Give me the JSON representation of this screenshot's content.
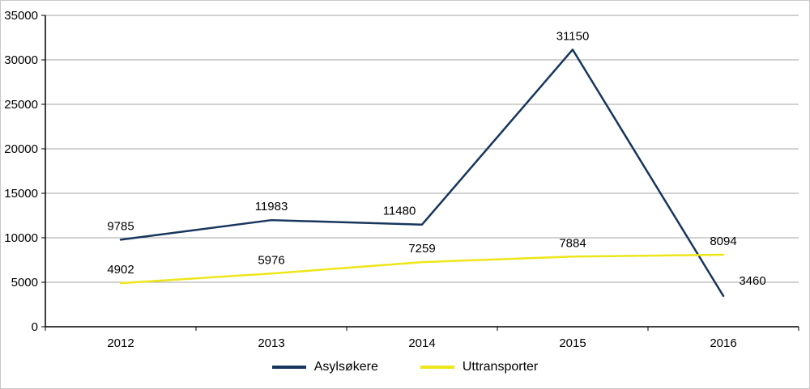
{
  "chart_data": {
    "type": "line",
    "title": "",
    "xlabel": "",
    "ylabel": "",
    "categories": [
      "2012",
      "2013",
      "2014",
      "2015",
      "2016"
    ],
    "series": [
      {
        "name": "Asylsøkere",
        "color": "#17365D",
        "values": [
          9785,
          11983,
          11480,
          31150,
          3460
        ]
      },
      {
        "name": "Uttransporter",
        "color": "#EDE619",
        "values": [
          4902,
          5976,
          7259,
          7884,
          8094
        ]
      }
    ],
    "ylim": [
      0,
      35000
    ],
    "yticks": [
      0,
      5000,
      10000,
      15000,
      20000,
      25000,
      30000,
      35000
    ],
    "grid": true,
    "data_labels": true,
    "legend_position": "bottom",
    "colors": {
      "axis": "#000000",
      "gridline": "#A6A6A6",
      "label_text": "#000000",
      "background": "#FFFFFF"
    }
  }
}
